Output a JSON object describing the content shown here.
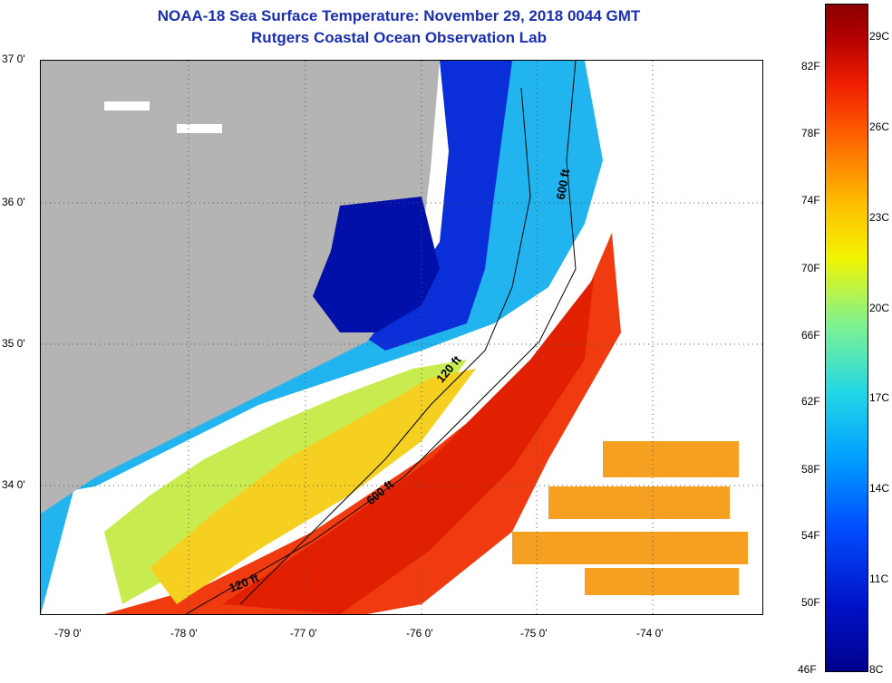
{
  "title": "NOAA-18 Sea Surface Temperature:  November 29, 2018 0044 GMT",
  "subtitle": "Rutgers Coastal Ocean Observation Lab",
  "lat_labels": [
    "37 0'",
    "36 0'",
    "35 0'",
    "34 0'"
  ],
  "lon_labels": [
    "-79 0'",
    "-78 0'",
    "-77 0'",
    "-76 0'",
    "-75 0'",
    "-74 0'"
  ],
  "colorbar_f": [
    "82F",
    "78F",
    "74F",
    "70F",
    "66F",
    "62F",
    "58F",
    "54F",
    "50F",
    "46F"
  ],
  "colorbar_c": [
    "29C",
    "26C",
    "23C",
    "20C",
    "17C",
    "14C",
    "11C",
    "8C"
  ],
  "contours": {
    "c1": "600 ft",
    "c2": "120 ft",
    "c3": "600 ft",
    "c4": "120 ft"
  },
  "colors": {
    "land": "#b4b4b4",
    "cold": "#0018b4",
    "warm": "#f03000",
    "title": "#1a2fb0"
  }
}
